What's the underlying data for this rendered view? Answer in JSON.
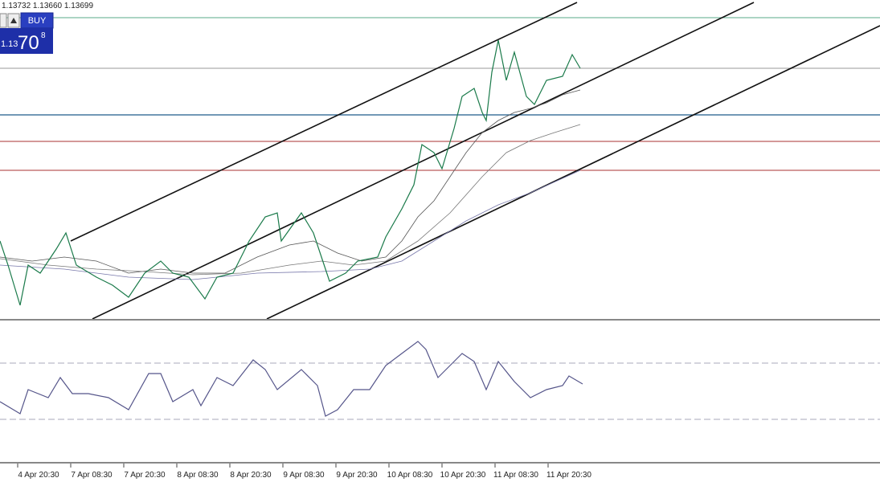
{
  "quote": "1.13732 1.13660 1.13699",
  "trade_panel": {
    "buy_label": "BUY",
    "price_prefix": "1.13",
    "price_big": "70",
    "price_sup": "8"
  },
  "time_axis": [
    "4 Apr 20:30",
    "7 Apr 08:30",
    "7 Apr 20:30",
    "8 Apr 08:30",
    "8 Apr 20:30",
    "9 Apr 08:30",
    "9 Apr 20:30",
    "10 Apr 08:30",
    "10 Apr 20:30",
    "11 Apr 08:30",
    "11 Apr 20:30"
  ]
}
